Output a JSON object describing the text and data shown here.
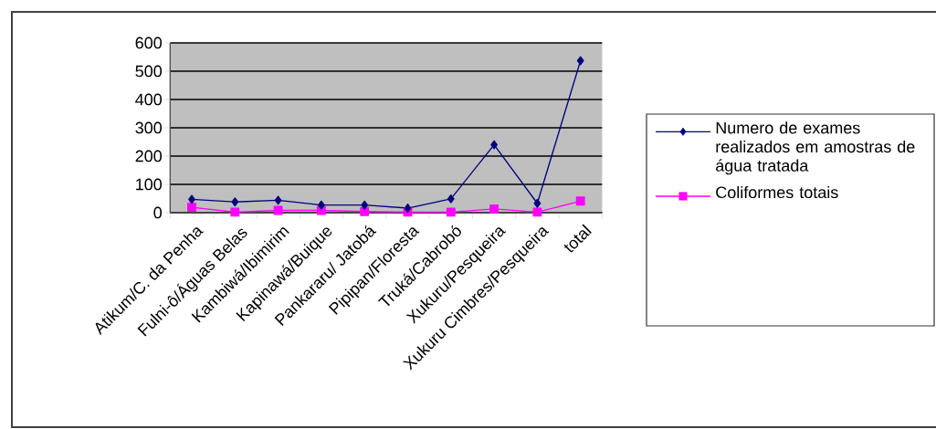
{
  "chart_data": {
    "type": "line",
    "categories": [
      "Atikum/C. da Penha",
      "Fulni-ô/Águas Belas",
      "Kambiwá/Ibimirim",
      "Kapinawá/Buique",
      "Pankararu/ Jatobá",
      "Pipipan/Floresta",
      "Truká/Cabrobó",
      "Xukuru/Pesqueira",
      "Xukuru Cimbres/Pesqueira",
      "total"
    ],
    "series": [
      {
        "name": "Numero de exames realizados em amostras de água tratada",
        "color": "#000080",
        "marker": "diamond",
        "values": [
          47,
          38,
          44,
          27,
          27,
          16,
          49,
          240,
          33,
          537
        ]
      },
      {
        "name": "Coliformes totais",
        "color": "#ff00ff",
        "marker": "square",
        "values": [
          19,
          2,
          8,
          8,
          4,
          2,
          2,
          13,
          2,
          41
        ]
      }
    ],
    "ylim": [
      0,
      600
    ],
    "yticks": [
      0,
      100,
      200,
      300,
      400,
      500,
      600
    ],
    "grid": "y",
    "legend": "right"
  }
}
